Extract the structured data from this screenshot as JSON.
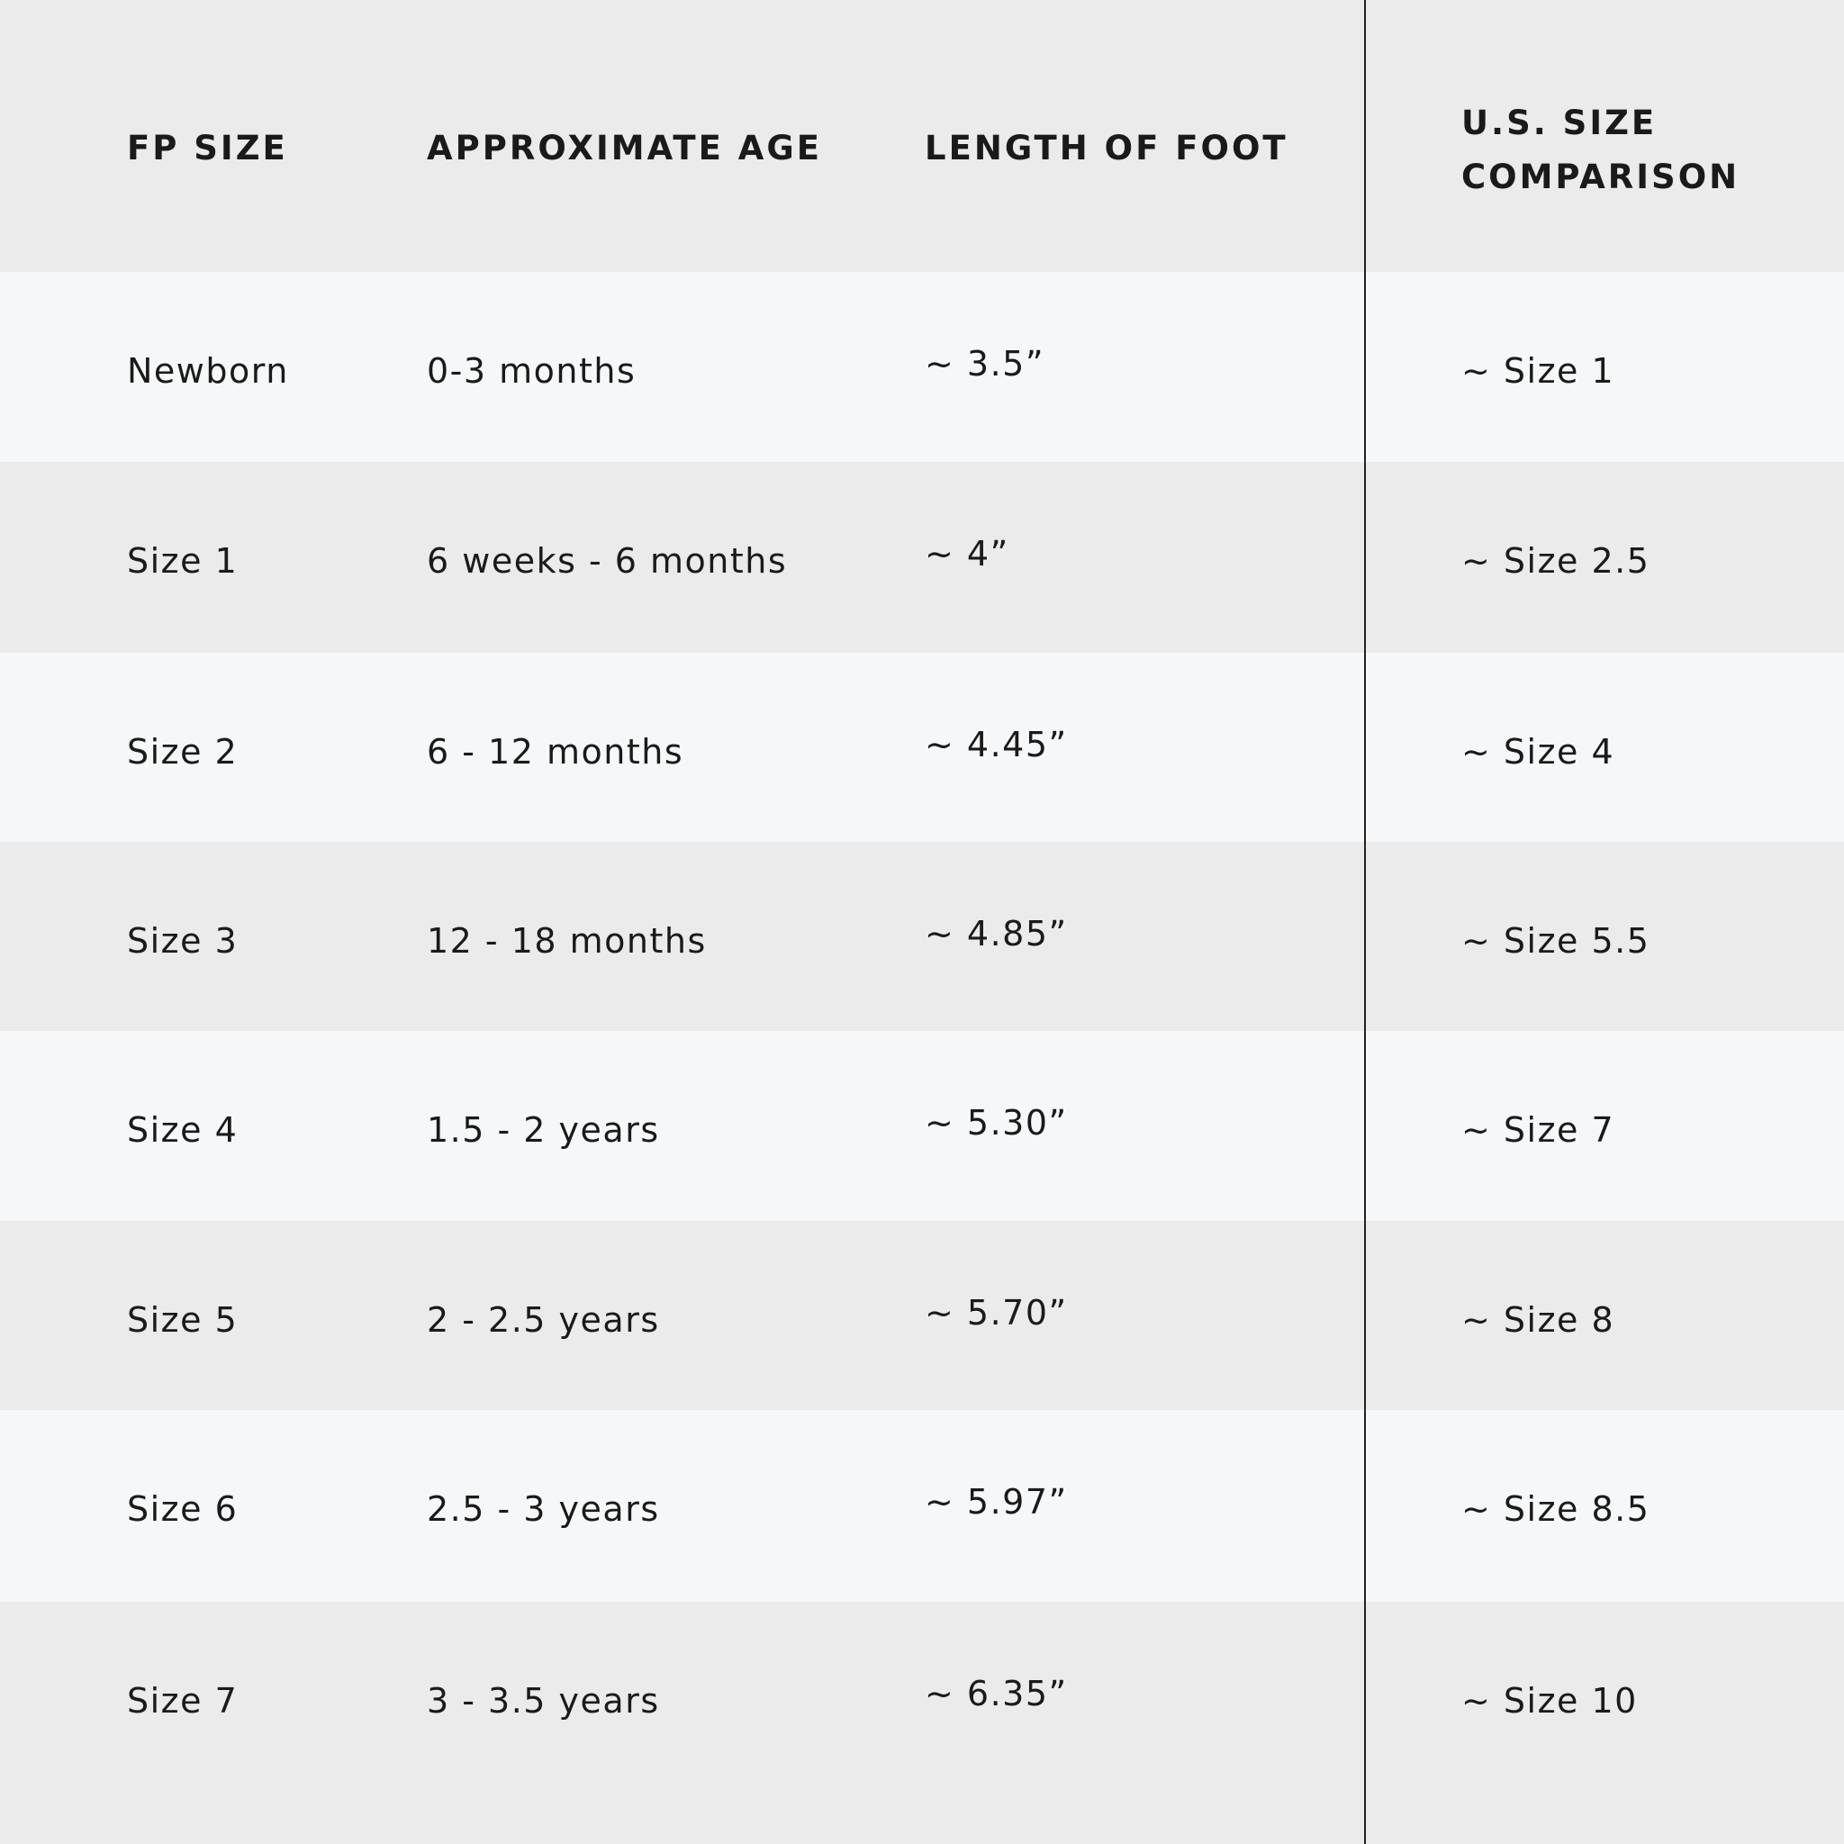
{
  "table": {
    "header": [
      "FP SIZE",
      "APPROXIMATE AGE",
      "LENGTH OF FOOT",
      "U.S. SIZE COMPARISON"
    ],
    "rows": [
      [
        "Newborn",
        "0-3 months",
        "~ 3.5”",
        "~ Size 1"
      ],
      [
        "Size 1",
        "6 weeks - 6 months",
        "~ 4”",
        "~ Size 2.5"
      ],
      [
        "Size 2",
        "6 - 12 months",
        "~ 4.45”",
        "~ Size 4"
      ],
      [
        "Size 3",
        "12 - 18 months",
        "~ 4.85”",
        "~ Size 5.5"
      ],
      [
        "Size 4",
        "1.5 - 2 years",
        "~ 5.30”",
        "~ Size 7"
      ],
      [
        "Size 5",
        "2 - 2.5 years",
        "~ 5.70”",
        "~ Size 8"
      ],
      [
        "Size 6",
        "2.5 - 3 years",
        "~ 5.97”",
        "~ Size 8.5"
      ],
      [
        "Size 7",
        "3 - 3.5 years",
        "~ 6.35”",
        "~ Size 10"
      ]
    ]
  }
}
